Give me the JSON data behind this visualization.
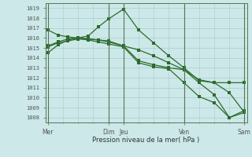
{
  "xlabel": "Pression niveau de la mer( hPa )",
  "bg_color": "#cce8e8",
  "grid_color": "#aacccc",
  "line_color": "#2d6b2d",
  "ylim": [
    1007.5,
    1019.5
  ],
  "yticks": [
    1008,
    1009,
    1010,
    1011,
    1012,
    1013,
    1014,
    1015,
    1016,
    1017,
    1018,
    1019
  ],
  "vline_positions": [
    0,
    12,
    15,
    27,
    39
  ],
  "n_points": 40,
  "line1_x": [
    0,
    2,
    4,
    6,
    8,
    10,
    12,
    15,
    18,
    21,
    24,
    27,
    30,
    33,
    36,
    39
  ],
  "line1_y": [
    1014.5,
    1015.3,
    1015.8,
    1016.0,
    1015.9,
    1015.8,
    1015.6,
    1015.2,
    1014.8,
    1014.2,
    1013.5,
    1012.8,
    1011.8,
    1011.5,
    1010.5,
    1008.5
  ],
  "line2_x": [
    0,
    2,
    4,
    6,
    8,
    10,
    12,
    15,
    18,
    21,
    24,
    27,
    30,
    33,
    36,
    39
  ],
  "line2_y": [
    1016.8,
    1016.3,
    1016.1,
    1016.0,
    1015.9,
    1015.8,
    1015.7,
    1015.2,
    1013.7,
    1013.3,
    1013.0,
    1012.8,
    1011.5,
    1010.3,
    1008.0,
    1008.7
  ],
  "line3_x": [
    0,
    2,
    4,
    6,
    8,
    10,
    12,
    15,
    18,
    21,
    24,
    27,
    30,
    33,
    36,
    39
  ],
  "line3_y": [
    1015.2,
    1015.6,
    1015.9,
    1016.0,
    1016.2,
    1017.1,
    1017.9,
    1018.9,
    1016.8,
    1015.5,
    1014.2,
    1013.0,
    1011.7,
    1011.5,
    1011.5,
    1011.5
  ],
  "line4_x": [
    0,
    2,
    4,
    6,
    8,
    10,
    12,
    15,
    18,
    21,
    24,
    27,
    30,
    33,
    36,
    39
  ],
  "line4_y": [
    1015.1,
    1015.5,
    1015.7,
    1015.9,
    1015.8,
    1015.6,
    1015.4,
    1015.1,
    1013.5,
    1013.1,
    1012.9,
    1011.5,
    1010.1,
    1009.5,
    1008.0,
    1008.5
  ],
  "xtick_positions": [
    0,
    12,
    15,
    27,
    39
  ],
  "xtick_labels": [
    "Mer",
    "Dim",
    "Jeu",
    "Ven",
    "Sam"
  ],
  "minor_xtick_every": 3,
  "marker_size": 2.5,
  "linewidth": 0.9
}
